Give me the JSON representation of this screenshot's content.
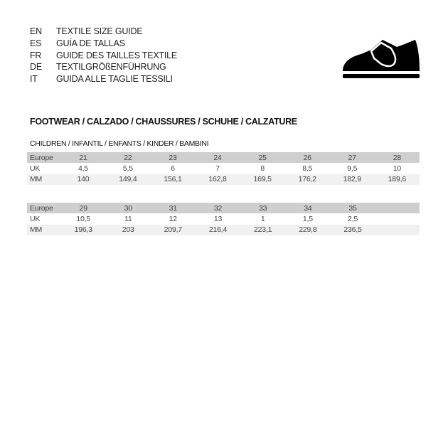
{
  "languages": [
    {
      "code": "EN",
      "title": "TEXTILE SIZE GUIDE"
    },
    {
      "code": "ES",
      "title": "GUÍA DE TALLAS"
    },
    {
      "code": "FR",
      "title": "GUIDE DES TAILLES TEXTILE"
    },
    {
      "code": "DE",
      "title": "TEXTILGRÖßENFÜHRUNG"
    },
    {
      "code": "IT",
      "title": "GUIDA ALLE TAGLIE TESSILI"
    }
  ],
  "icon": "shoe-velcro-icon",
  "section_title": "FOOTWEAR / CALZADO / CHAUSSURES / SCHUHE / CALZATURE",
  "subsection_title": "CHILDREN / INFANTIL / ENFANTS / KINDER / BAMBINI",
  "tables": [
    {
      "rows": [
        {
          "label": "Europe",
          "values": [
            "21",
            "22",
            "23",
            "24",
            "25",
            "26",
            "27",
            "28"
          ]
        },
        {
          "label": "UK",
          "values": [
            "4,5",
            "5,5",
            "6",
            "7",
            "8",
            "8,5",
            "9,5",
            "10"
          ]
        },
        {
          "label": "MM",
          "values": [
            "140",
            "149,4",
            "156,1",
            "162,8",
            "169,5",
            "176,2",
            "182,9",
            "189,6"
          ]
        }
      ]
    },
    {
      "rows": [
        {
          "label": "Europe",
          "values": [
            "29",
            "30",
            "31",
            "32",
            "33",
            "34",
            "35",
            ""
          ]
        },
        {
          "label": "UK",
          "values": [
            "10,5",
            "11",
            "12",
            "13",
            "1",
            "1,5",
            "2,5",
            ""
          ]
        },
        {
          "label": "MM",
          "values": [
            "196,3",
            "203",
            "209,7",
            "216,4",
            "223,1",
            "229,8",
            "236,5",
            ""
          ]
        }
      ]
    }
  ]
}
